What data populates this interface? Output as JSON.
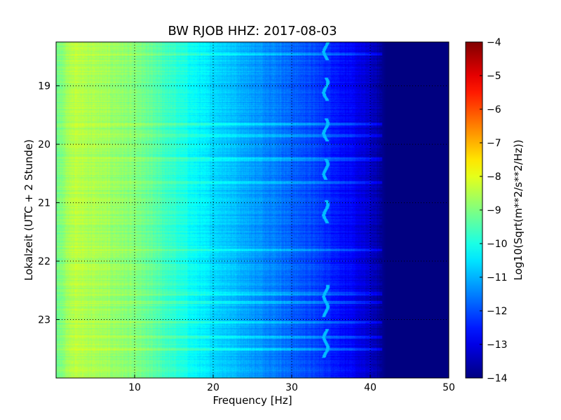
{
  "chart_data": {
    "type": "heatmap",
    "title": "BW RJOB HHZ: 2017-08-03",
    "xlabel": "Frequency [Hz]",
    "ylabel": "Lokalzeit (UTC + 2 Stunde)",
    "xlim": [
      0,
      50
    ],
    "ylim": [
      18.25,
      24.0
    ],
    "y_inverted": true,
    "x_ticks": [
      10,
      20,
      30,
      40,
      50
    ],
    "y_ticks": [
      19,
      20,
      21,
      22,
      23
    ],
    "grid": true,
    "colormap": "jet",
    "colorbar": {
      "label": "Log10(Sqrt(m**2/s**2/Hz))",
      "range": [
        -14,
        -4
      ],
      "ticks": [
        -4,
        -5,
        -6,
        -7,
        -8,
        -9,
        -10,
        -11,
        -12,
        -13,
        -14
      ]
    },
    "frequency_profile": {
      "frequency_hz": [
        0,
        2,
        5,
        8,
        10,
        12,
        15,
        18,
        20,
        22,
        25,
        28,
        30,
        32,
        35,
        38,
        40,
        42,
        44,
        46,
        48,
        50
      ],
      "log10_amplitude": [
        -9.2,
        -8.4,
        -8.6,
        -8.8,
        -9.0,
        -9.3,
        -9.8,
        -10.3,
        -10.6,
        -10.8,
        -11.2,
        -11.5,
        -11.8,
        -12.0,
        -12.4,
        -12.9,
        -13.3,
        -14.0,
        -14.0,
        -14.0,
        -14.0,
        -14.0
      ]
    },
    "spectral_line": {
      "frequency_hz": 34.3,
      "log10_amplitude": -10.9,
      "time_segments": [
        [
          18.15,
          18.55
        ],
        [
          18.85,
          19.25
        ],
        [
          19.55,
          19.95
        ],
        [
          20.25,
          20.6
        ],
        [
          20.95,
          21.35
        ],
        [
          22.4,
          22.95
        ],
        [
          23.15,
          23.65
        ]
      ]
    },
    "elevated_time_bands_hour": [
      18.45,
      19.65,
      19.85,
      20.25,
      20.65,
      21.8,
      22.55,
      22.7,
      23.05,
      23.3,
      23.5
    ]
  }
}
